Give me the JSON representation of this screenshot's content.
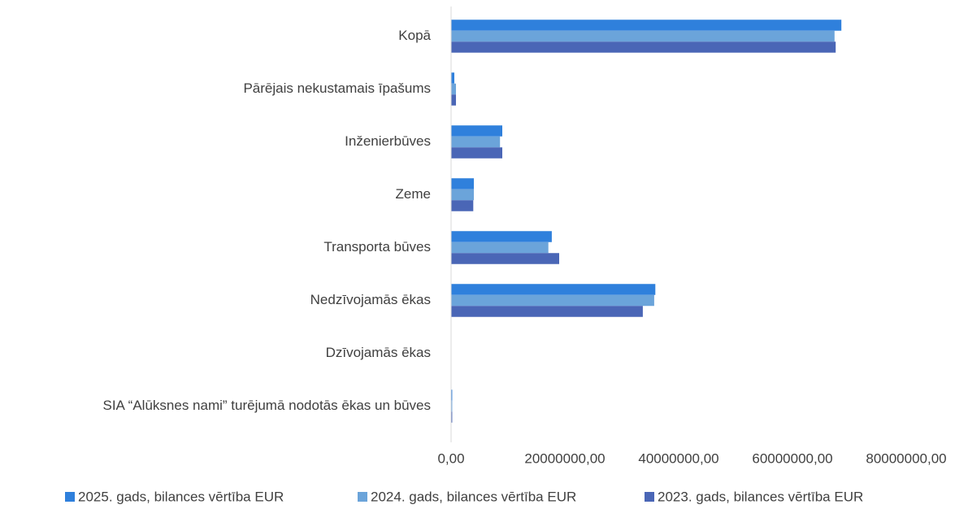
{
  "chart_data": {
    "type": "bar",
    "orientation": "horizontal",
    "categories": [
      "Kopā",
      "Pārējais nekustamais īpašums",
      "Inženierbūves",
      "Zeme",
      "Transporta būves",
      "Nedzīvojamās ēkas",
      "Dzīvojamās ēkas",
      "SIA “Alūksnes nami” turējumā nodotās ēkas un būves"
    ],
    "series": [
      {
        "name": "2025. gads, bilances vērtība EUR",
        "color": "#2f80dc",
        "values": [
          68600000,
          570000,
          9000000,
          4000000,
          17700000,
          35900000,
          0,
          200000
        ]
      },
      {
        "name": "2024. gads, bilances vērtība EUR",
        "color": "#6ba4da",
        "values": [
          67400000,
          860000,
          8600000,
          4000000,
          17100000,
          35700000,
          0,
          200000
        ]
      },
      {
        "name": "2023. gads, bilances vērtība EUR",
        "color": "#4a66b6",
        "values": [
          67600000,
          860000,
          9000000,
          3900000,
          19000000,
          33700000,
          0,
          200000
        ]
      }
    ],
    "xlim": [
      0,
      80000000
    ],
    "xticks": [
      {
        "value": 0,
        "label": "0,00"
      },
      {
        "value": 20000000,
        "label": "20000000,00"
      },
      {
        "value": 40000000,
        "label": "40000000,00"
      },
      {
        "value": 60000000,
        "label": "60000000,00"
      },
      {
        "value": 80000000,
        "label": "80000000,00"
      }
    ],
    "grid": false,
    "legend": "bottom"
  }
}
